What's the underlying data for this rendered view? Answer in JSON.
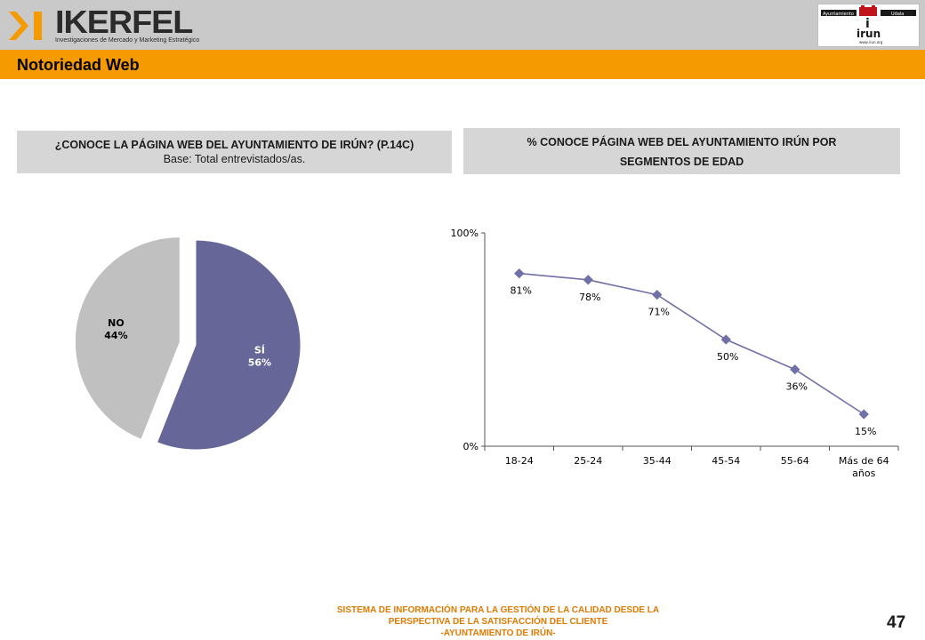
{
  "header": {
    "brand": "IKERFEL",
    "brand_tagline": "Investigaciones de Mercado y Marketing Estratégico",
    "city_logo": {
      "left_label": "Ayuntamiento",
      "right_label": "Udala",
      "name": "irun",
      "url": "www.irun.org"
    }
  },
  "page_title": "Notoriedad Web",
  "left_panel": {
    "title": "¿CONOCE LA PÁGINA WEB DEL AYUNTAMIENTO DE IRÚN? (P.14C)",
    "base": "Base: Total entrevistados/as."
  },
  "right_panel": {
    "title_line1": "% CONOCE PÁGINA WEB DEL AYUNTAMIENTO IRÚN POR",
    "title_line2": "SEGMENTOS DE EDAD"
  },
  "chart_data": [
    {
      "type": "pie",
      "labels": [
        "SÍ",
        "NO"
      ],
      "values": [
        56,
        44
      ],
      "value_labels": [
        "56%",
        "44%"
      ],
      "colors": [
        "#666699",
        "#c0c0c0"
      ],
      "exploded": "NO"
    },
    {
      "type": "line",
      "categories": [
        "18-24",
        "25-24",
        "35-44",
        "45-54",
        "55-64",
        "Más de 64 años"
      ],
      "series": [
        {
          "values": [
            81,
            78,
            71,
            50,
            36,
            15
          ],
          "color": "#7070a8"
        }
      ],
      "data_labels": [
        "81%",
        "78%",
        "71%",
        "50%",
        "36%",
        "15%"
      ],
      "ylim": [
        0,
        100
      ],
      "yticks": [
        "0%",
        "100%"
      ],
      "grid": false,
      "legend": "none"
    }
  ],
  "footer": {
    "line1": "SISTEMA DE INFORMACIÓN PARA LA GESTIÓN DE LA CALIDAD DESDE LA",
    "line2": "PERSPECTIVA DE LA SATISFACCIÓN DEL CLIENTE",
    "line3": "-AYUNTAMIENTO DE IRÚN-",
    "page_number": "47"
  }
}
